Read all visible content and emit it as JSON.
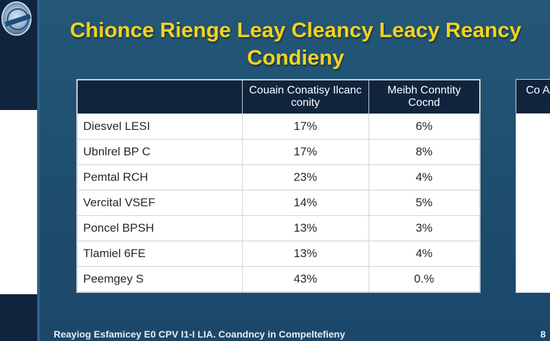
{
  "title": {
    "line1": "Chionce Rienge Leay Cleancy Leacy Reancy",
    "line2": "Condieny"
  },
  "table": {
    "headers": [
      "",
      "Couain Conatisy Ilcanc conity",
      "Meibh Conntity Cocnd"
    ],
    "rows": [
      {
        "name": "Diesvel LESI",
        "a": "17%",
        "b": "6%"
      },
      {
        "name": "Ubnlrel BP C",
        "a": "17%",
        "b": "8%"
      },
      {
        "name": "Pemtal RCH",
        "a": "23%",
        "b": "4%"
      },
      {
        "name": "Vercital VSEF",
        "a": "14%",
        "b": "5%"
      },
      {
        "name": "Poncel BPSH",
        "a": "13%",
        "b": "3%"
      },
      {
        "name": "Tlamiel 6FE",
        "a": "13%",
        "b": "4%"
      },
      {
        "name": "Peemgey S",
        "a": "43%",
        "b": "0.%"
      }
    ]
  },
  "side_panel": {
    "header": "Co A"
  },
  "footer": {
    "text": "Reayiog Esfamicey E0 CPV I1-I LIA. Coandncy in Compeltefieny",
    "page_number": "8"
  },
  "colors": {
    "title": "#f3d21f",
    "header_bg": "#10243d",
    "slide_bg": "#1f4c6e"
  },
  "icons": {
    "logo": "emblem-logo"
  }
}
